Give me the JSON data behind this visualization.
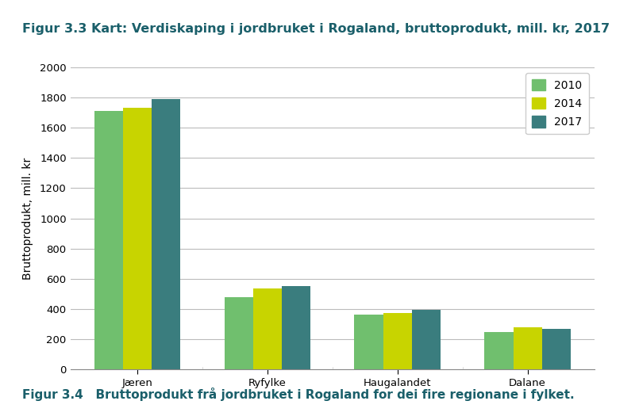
{
  "title": "Figur 3.3 Kart: Verdiskaping i jordbruket i Rogaland, bruttoprodukt, mill. kr, 2017",
  "subtitle": "Figur 3.4   Bruttoprodukt frå jordbruket i Rogaland for dei fire regionane i fylket.",
  "ylabel": "Bruttoprodukt, mill. kr",
  "categories": [
    "Jæren",
    "Ryfylke",
    "Haugalandet",
    "Dalane"
  ],
  "series": {
    "2010": [
      1710,
      480,
      365,
      248
    ],
    "2014": [
      1730,
      535,
      375,
      278
    ],
    "2017": [
      1790,
      550,
      395,
      268
    ]
  },
  "colors": {
    "2010": "#70bf6e",
    "2014": "#c8d400",
    "2017": "#3a7d7e"
  },
  "ylim": [
    0,
    2000
  ],
  "yticks": [
    0,
    200,
    400,
    600,
    800,
    1000,
    1200,
    1400,
    1600,
    1800,
    2000
  ],
  "title_color": "#1a5f6a",
  "subtitle_color": "#1a5f6a",
  "background_color": "#ffffff",
  "grid_color": "#bbbbbb",
  "legend_labels": [
    "2010",
    "2014",
    "2017"
  ],
  "bar_width": 0.22,
  "title_fontsize": 11.5,
  "subtitle_fontsize": 11,
  "ylabel_fontsize": 10,
  "tick_fontsize": 9.5,
  "legend_fontsize": 10
}
